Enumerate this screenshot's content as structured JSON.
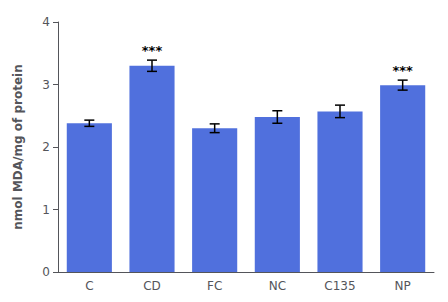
{
  "chart_data": {
    "type": "bar",
    "ylabel": "nmol MDA/mg of protein",
    "categories": [
      "C",
      "CD",
      "FC",
      "NC",
      "C135",
      "NP"
    ],
    "values": [
      2.38,
      3.3,
      2.3,
      2.48,
      2.57,
      2.99
    ],
    "errors": [
      0.05,
      0.09,
      0.07,
      0.1,
      0.1,
      0.08
    ],
    "annotations": [
      {
        "label": "***",
        "category": "CD"
      },
      {
        "label": "***",
        "category": "NP"
      }
    ],
    "ylim": [
      0,
      4
    ],
    "yticks": [
      0,
      1,
      2,
      3,
      4
    ],
    "grid": false
  }
}
